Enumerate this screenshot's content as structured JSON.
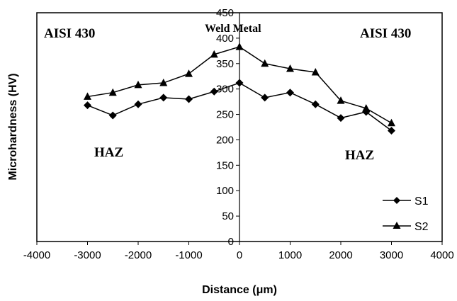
{
  "chart_data": {
    "type": "line",
    "title": "",
    "xlabel": "Distance (μm)",
    "ylabel": "Microhardness (HV)",
    "xlim": [
      -4000,
      4000
    ],
    "ylim": [
      0,
      450
    ],
    "x_ticks": [
      -4000,
      -3000,
      -2000,
      -1000,
      0,
      1000,
      2000,
      3000,
      4000
    ],
    "y_ticks": [
      0,
      50,
      100,
      150,
      200,
      250,
      300,
      350,
      400,
      450
    ],
    "grid": false,
    "legend_position": "bottom-right",
    "series": [
      {
        "name": "S1",
        "marker": "diamond",
        "x": [
          -3000,
          -2500,
          -2000,
          -1500,
          -1000,
          -500,
          0,
          500,
          1000,
          1500,
          2000,
          2500,
          3000
        ],
        "y": [
          268,
          248,
          270,
          283,
          280,
          295,
          312,
          283,
          293,
          270,
          243,
          255,
          218
        ]
      },
      {
        "name": "S2",
        "marker": "triangle",
        "x": [
          -3000,
          -2500,
          -2000,
          -1500,
          -1000,
          -500,
          0,
          500,
          1000,
          1500,
          2000,
          2500,
          3000
        ],
        "y": [
          285,
          293,
          308,
          312,
          330,
          368,
          383,
          350,
          340,
          333,
          277,
          262,
          233
        ]
      }
    ],
    "annotations": [
      {
        "id": "aisi-left",
        "text": "AISI 430"
      },
      {
        "id": "weld-metal",
        "text": "Weld Metal"
      },
      {
        "id": "aisi-right",
        "text": "AISI 430"
      },
      {
        "id": "haz-left",
        "text": "HAZ"
      },
      {
        "id": "haz-right",
        "text": "HAZ"
      }
    ]
  }
}
